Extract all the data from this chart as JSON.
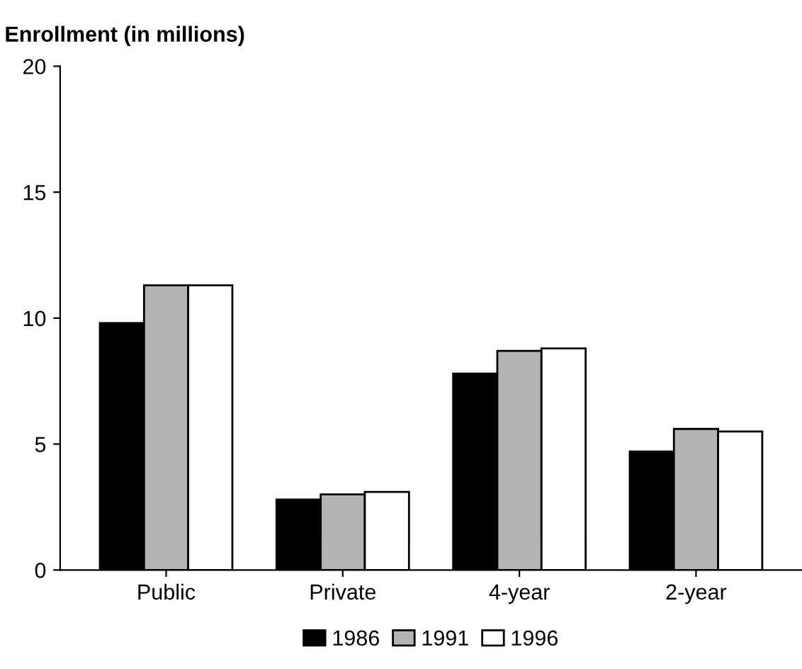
{
  "chart_data": {
    "type": "bar",
    "ylabel": "Enrollment (in millions)",
    "categories": [
      "Public",
      "Private",
      "4-year",
      "2-year"
    ],
    "series": [
      {
        "name": "1986",
        "color": "#000000",
        "values": [
          9.8,
          2.8,
          7.8,
          4.7
        ]
      },
      {
        "name": "1991",
        "color": "#b4b4b4",
        "values": [
          11.3,
          3.0,
          8.7,
          5.6
        ]
      },
      {
        "name": "1996",
        "color": "#ffffff",
        "values": [
          11.3,
          3.1,
          8.8,
          5.5
        ]
      }
    ],
    "ylim": [
      0,
      20
    ],
    "yticks": [
      0,
      5,
      10,
      15,
      20
    ],
    "grid": false,
    "legend": "bottom"
  }
}
